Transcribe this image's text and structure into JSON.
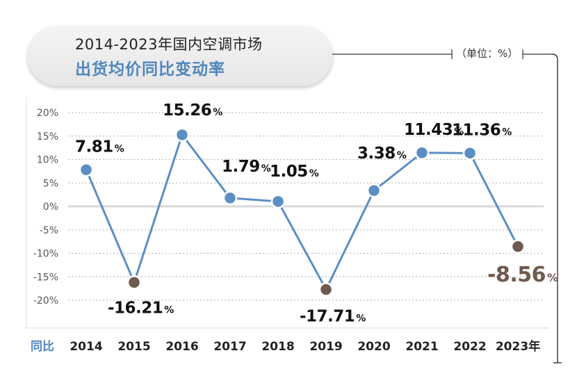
{
  "title": {
    "line1": "2014-2023年国内空调市场",
    "line2": "出货均价同比变动率"
  },
  "unit_label": "（单位：%）",
  "x_row_label": "同比",
  "colors": {
    "line": "#5b8ec4",
    "point_positive": "#5b8ec4",
    "point_negative": "#6e5a4e",
    "title_accent": "#4f86bd",
    "zero_line": "#d9d9d9"
  },
  "chart_data": {
    "type": "line",
    "categories": [
      "2014",
      "2015",
      "2016",
      "2017",
      "2018",
      "2019",
      "2020",
      "2021",
      "2022",
      "2023年"
    ],
    "values": [
      7.81,
      -16.21,
      15.26,
      1.79,
      1.05,
      -17.71,
      3.38,
      11.43,
      11.36,
      -8.56
    ],
    "data_labels": [
      "7.81",
      "-16.21",
      "15.26",
      "1.79",
      "1.05",
      "-17.71",
      "3.38",
      "11.43",
      "11.36",
      "-8.56"
    ],
    "ylim": [
      -20,
      20
    ],
    "yticks": [
      "20%",
      "15%",
      "10%",
      "5%",
      "0%",
      "-5%",
      "-10%",
      "-15%",
      "-20%"
    ],
    "percent_sign": "%",
    "grid": true
  }
}
